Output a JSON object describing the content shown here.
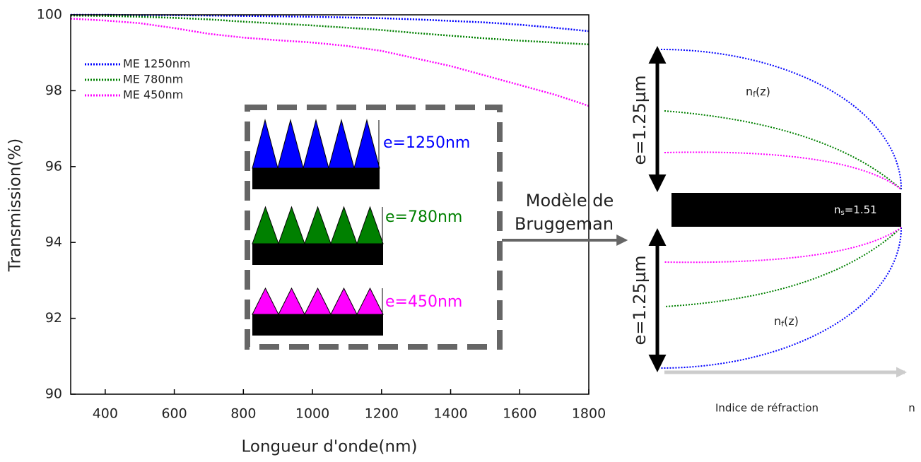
{
  "chart_data": {
    "type": "line",
    "xlabel": "Longueur d'onde(nm)",
    "ylabel": "Transmission(%)",
    "x": [
      300,
      400,
      500,
      600,
      700,
      800,
      900,
      1000,
      1100,
      1200,
      1300,
      1400,
      1500,
      1600,
      1700,
      1800
    ],
    "series": [
      {
        "name": "ME 1250nm",
        "color": "#0000ff",
        "values": [
          100,
          100,
          99.99,
          99.99,
          99.98,
          99.97,
          99.96,
          99.95,
          99.93,
          99.91,
          99.88,
          99.84,
          99.8,
          99.74,
          99.66,
          99.57
        ]
      },
      {
        "name": "ME 780nm",
        "color": "#008000",
        "values": [
          99.98,
          99.97,
          99.95,
          99.92,
          99.88,
          99.82,
          99.77,
          99.72,
          99.66,
          99.6,
          99.52,
          99.45,
          99.38,
          99.32,
          99.27,
          99.22
        ]
      },
      {
        "name": "ME 450nm",
        "color": "#ff00ff",
        "values": [
          99.9,
          99.85,
          99.78,
          99.65,
          99.5,
          99.4,
          99.33,
          99.27,
          99.18,
          99.05,
          98.85,
          98.65,
          98.4,
          98.15,
          97.9,
          97.6
        ]
      }
    ],
    "xlim": [
      300,
      1800
    ],
    "xticks": [
      400,
      600,
      800,
      1000,
      1200,
      1400,
      1600,
      1800
    ],
    "ylim": [
      90,
      100
    ],
    "yticks": [
      90,
      92,
      94,
      96,
      98,
      100
    ],
    "legend": "upper left"
  },
  "inset": {
    "labels": [
      "e=1250nm",
      "e=780nm",
      "e=450nm"
    ],
    "arrow_text": [
      "Modèle de",
      "Bruggeman"
    ]
  },
  "profile": {
    "thickness_top": "e=1.25µm",
    "thickness_bottom": "e=1.25µm",
    "film_index": {
      "base": "n",
      "sub": "f",
      "rest": "(z)"
    },
    "substrate_index": {
      "base": "n",
      "sub": "s",
      "rest": "=1.51"
    },
    "axis_label": "Indice de réfraction",
    "axis_symbol": "n"
  }
}
